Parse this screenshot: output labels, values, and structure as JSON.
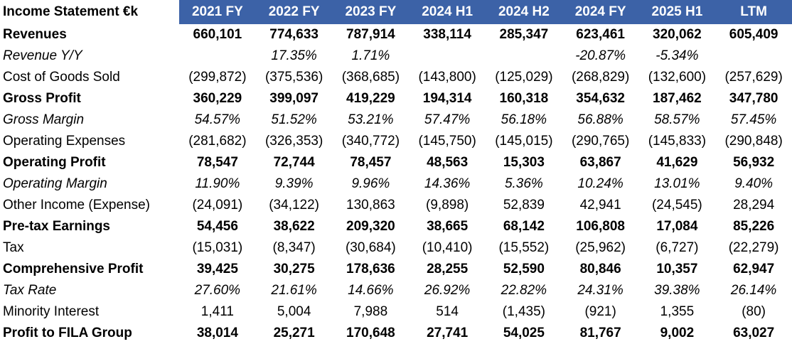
{
  "table": {
    "title": "Income Statement €k",
    "columns": [
      "2021 FY",
      "2022 FY",
      "2023 FY",
      "2024 H1",
      "2024  H2",
      "2024 FY",
      "2025 H1",
      "LTM"
    ],
    "rows": [
      {
        "label": "Revenues",
        "style": "bold",
        "values": [
          "660,101",
          "774,633",
          "787,914",
          "338,114",
          "285,347",
          "623,461",
          "320,062",
          "605,409"
        ]
      },
      {
        "label": "Revenue Y/Y",
        "style": "italic",
        "values": [
          "",
          "17.35%",
          "1.71%",
          "",
          "",
          "-20.87%",
          "-5.34%",
          ""
        ]
      },
      {
        "label": "Cost of Goods Sold",
        "style": "normal",
        "values": [
          "(299,872)",
          "(375,536)",
          "(368,685)",
          "(143,800)",
          "(125,029)",
          "(268,829)",
          "(132,600)",
          "(257,629)"
        ]
      },
      {
        "label": "Gross Profit",
        "style": "bold",
        "values": [
          "360,229",
          "399,097",
          "419,229",
          "194,314",
          "160,318",
          "354,632",
          "187,462",
          "347,780"
        ]
      },
      {
        "label": "Gross Margin",
        "style": "italic",
        "values": [
          "54.57%",
          "51.52%",
          "53.21%",
          "57.47%",
          "56.18%",
          "56.88%",
          "58.57%",
          "57.45%"
        ]
      },
      {
        "label": "Operating Expenses",
        "style": "normal",
        "values": [
          "(281,682)",
          "(326,353)",
          "(340,772)",
          "(145,750)",
          "(145,015)",
          "(290,765)",
          "(145,833)",
          "(290,848)"
        ]
      },
      {
        "label": "Operating Profit",
        "style": "bold",
        "values": [
          "78,547",
          "72,744",
          "78,457",
          "48,563",
          "15,303",
          "63,867",
          "41,629",
          "56,932"
        ]
      },
      {
        "label": "Operating Margin",
        "style": "italic",
        "values": [
          "11.90%",
          "9.39%",
          "9.96%",
          "14.36%",
          "5.36%",
          "10.24%",
          "13.01%",
          "9.40%"
        ]
      },
      {
        "label": "Other Income (Expense)",
        "style": "normal",
        "values": [
          "(24,091)",
          "(34,122)",
          "130,863",
          "(9,898)",
          "52,839",
          "42,941",
          "(24,545)",
          "28,294"
        ]
      },
      {
        "label": "Pre-tax Earnings",
        "style": "bold",
        "values": [
          "54,456",
          "38,622",
          "209,320",
          "38,665",
          "68,142",
          "106,808",
          "17,084",
          "85,226"
        ]
      },
      {
        "label": "Tax",
        "style": "normal",
        "values": [
          "(15,031)",
          "(8,347)",
          "(30,684)",
          "(10,410)",
          "(15,552)",
          "(25,962)",
          "(6,727)",
          "(22,279)"
        ]
      },
      {
        "label": "Comprehensive Profit",
        "style": "bold",
        "values": [
          "39,425",
          "30,275",
          "178,636",
          "28,255",
          "52,590",
          "80,846",
          "10,357",
          "62,947"
        ]
      },
      {
        "label": "Tax Rate",
        "style": "italic",
        "values": [
          "27.60%",
          "21.61%",
          "14.66%",
          "26.92%",
          "22.82%",
          "24.31%",
          "39.38%",
          "26.14%"
        ]
      },
      {
        "label": "Minority Interest",
        "style": "normal",
        "values": [
          "1,411",
          "5,004",
          "7,988",
          "514",
          "(1,435)",
          "(921)",
          "1,355",
          "(80)"
        ]
      },
      {
        "label": "Profit to FILA Group",
        "style": "bold",
        "values": [
          "38,014",
          "25,271",
          "170,648",
          "27,741",
          "54,025",
          "81,767",
          "9,002",
          "63,027"
        ]
      }
    ]
  },
  "colors": {
    "header_background": "#3c62a7",
    "header_text": "#ffffff"
  }
}
